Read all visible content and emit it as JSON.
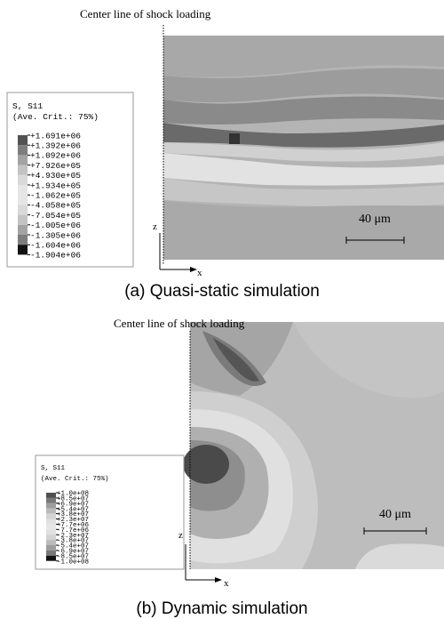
{
  "panels": [
    {
      "centerline": "Center line of shock loading",
      "legend": {
        "title": "S, S11",
        "subtitle": "(Ave. Crit.: 75%)",
        "labels": [
          "+1.691e+06",
          "+1.392e+06",
          "+1.092e+06",
          "+7.926e+05",
          "+4.930e+05",
          "+1.934e+05",
          "-1.062e+05",
          "-4.058e+05",
          "-7.054e+05",
          "-1.005e+06",
          "-1.305e+06",
          "-1.604e+06",
          "-1.904e+06"
        ]
      },
      "axis_z": "z",
      "axis_x": "x",
      "scale": "40 μm",
      "caption": "(a) Quasi-static simulation"
    },
    {
      "centerline": "Center line of shock loading",
      "legend": {
        "title": "S, S11",
        "subtitle": "(Ave. Crit.: 75%)",
        "labels": [
          "+1.0e+08",
          "+8.5e+07",
          "+6.9e+07",
          "+5.4e+07",
          "+3.8e+07",
          "+2.3e+07",
          "+7.7e+06",
          "-7.7e+06",
          "-2.3e+07",
          "-3.8e+07",
          "-5.4e+07",
          "-6.9e+07",
          "-8.5e+07",
          "-1.0e+08"
        ]
      },
      "axis_z": "z",
      "axis_x": "x",
      "scale": "40 μm",
      "caption": "(b) Dynamic simulation"
    }
  ]
}
